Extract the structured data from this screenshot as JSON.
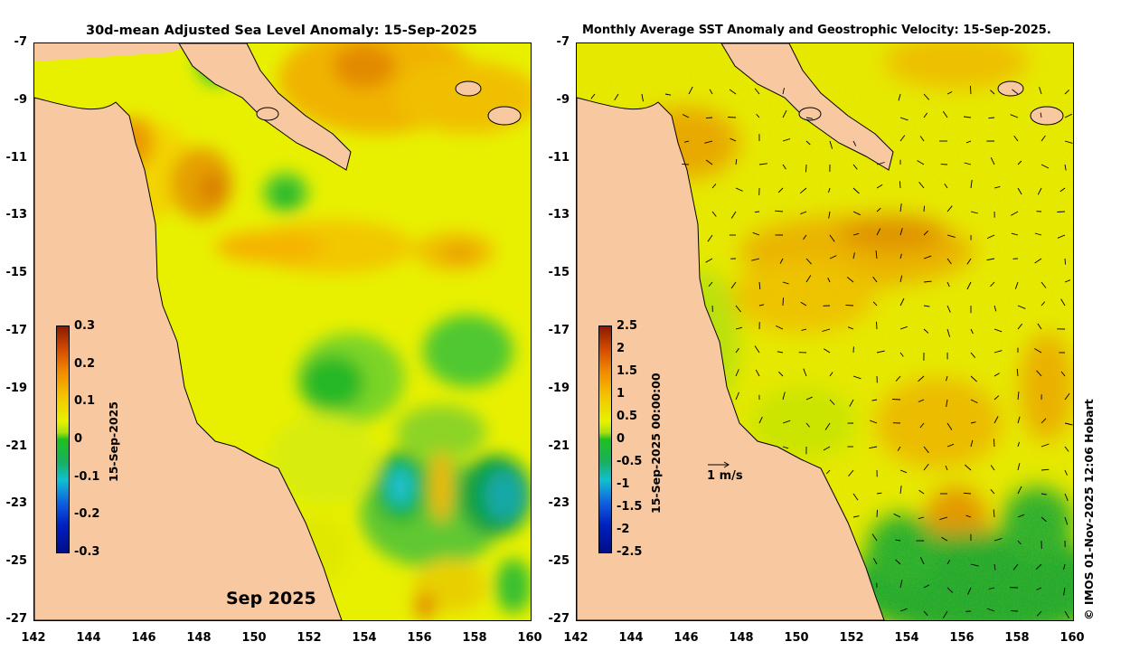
{
  "left_map": {
    "title": "30d-mean Adjusted Sea Level Anomaly: 15-Sep-2025",
    "stamp": "Sep 2025",
    "colorbar": {
      "ticks": [
        "0.3",
        "0.2",
        "0.1",
        "0",
        "-0.1",
        "-0.2",
        "-0.3"
      ],
      "date_label": "15-Sep-2025",
      "range": [
        -0.3,
        0.3
      ]
    }
  },
  "right_map": {
    "title": "Monthly Average SST Anomaly  and Geostrophic Velocity: 15-Sep-2025.",
    "scale_label": "1 m/s",
    "colorbar": {
      "ticks": [
        "2.5",
        "2",
        "1.5",
        "1",
        "0.5",
        "0",
        "-0.5",
        "-1",
        "-1.5",
        "-2",
        "-2.5"
      ],
      "date_label": "15-Sep-2025 00:00:00",
      "range": [
        -2.5,
        2.5
      ]
    }
  },
  "axes": {
    "lat_ticks": [
      "-7",
      "-9",
      "-11",
      "-13",
      "-15",
      "-17",
      "-19",
      "-21",
      "-23",
      "-25",
      "-27"
    ],
    "lon_ticks": [
      "142",
      "144",
      "146",
      "148",
      "150",
      "152",
      "154",
      "156",
      "158",
      "160"
    ],
    "lat_range": [
      -27,
      -7
    ],
    "lon_range": [
      142,
      160
    ]
  },
  "credit": "© IMOS 01-Nov-2025 12:06 Hobart",
  "colors": {
    "land": "#f8c9a0",
    "positive_high": "#8b1a00",
    "neutral": "#e6f200",
    "zero": "#20c020",
    "negative_low": "#000c8a"
  }
}
